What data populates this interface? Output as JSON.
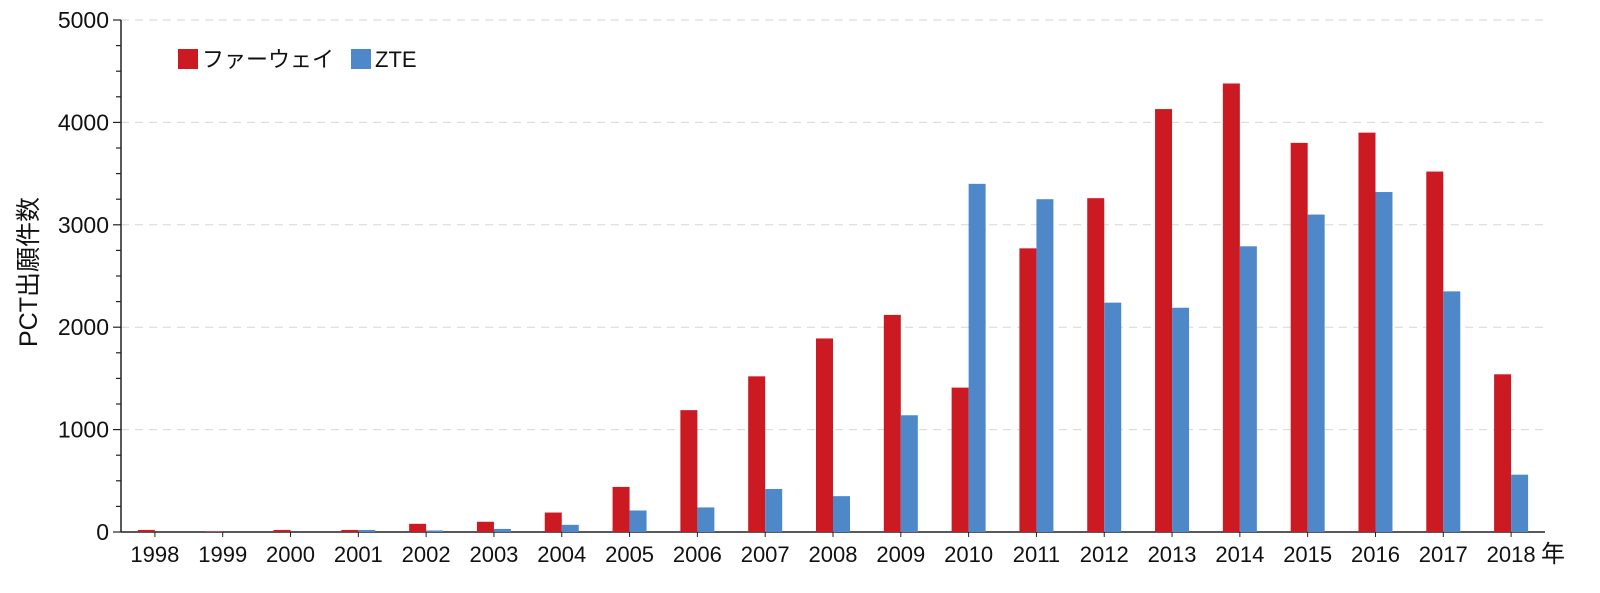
{
  "chart_data": {
    "type": "bar",
    "title": "",
    "ylabel": "PCT出願件数",
    "xlabel": "",
    "x_unit": "年",
    "ylim": [
      0,
      5000
    ],
    "yticks": [
      0,
      1000,
      2000,
      3000,
      4000,
      5000
    ],
    "grid": true,
    "legend_position": "top-left",
    "categories": [
      "1998",
      "1999",
      "2000",
      "2001",
      "2002",
      "2003",
      "2004",
      "2005",
      "2006",
      "2007",
      "2008",
      "2009",
      "2010",
      "2011",
      "2012",
      "2013",
      "2014",
      "2015",
      "2016",
      "2017",
      "2018"
    ],
    "series": [
      {
        "name": "ファーウェイ",
        "color": "#cc1a23",
        "values": [
          20,
          5,
          20,
          20,
          80,
          100,
          190,
          440,
          1190,
          1520,
          1890,
          2120,
          1410,
          2770,
          3260,
          4130,
          4380,
          3800,
          3900,
          3520,
          1540
        ]
      },
      {
        "name": "ZTE",
        "color": "#4f88c8",
        "values": [
          0,
          0,
          0,
          20,
          15,
          30,
          70,
          210,
          240,
          420,
          350,
          1140,
          3400,
          3250,
          2240,
          2190,
          2790,
          3100,
          3320,
          2350,
          560
        ]
      }
    ]
  }
}
